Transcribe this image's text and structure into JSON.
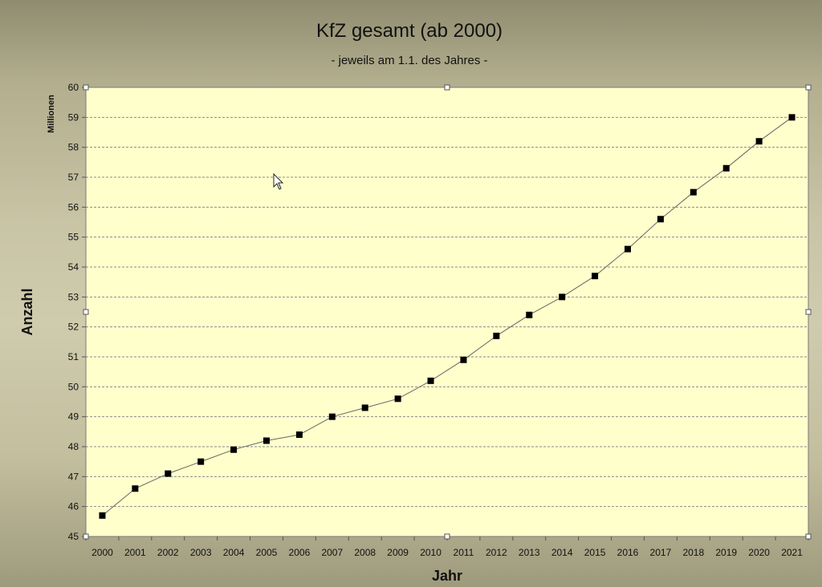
{
  "chart_data": {
    "type": "line",
    "title": "KfZ gesamt (ab 2000)",
    "subtitle": "- jeweils am 1.1. des Jahres -",
    "xlabel": "Jahr",
    "ylabel": "Anzahl",
    "yunit": "Millionen",
    "categories": [
      "2000",
      "2001",
      "2002",
      "2003",
      "2004",
      "2005",
      "2006",
      "2007",
      "2008",
      "2009",
      "2010",
      "2011",
      "2012",
      "2013",
      "2014",
      "2015",
      "2016",
      "2017",
      "2018",
      "2019",
      "2020",
      "2021"
    ],
    "series": [
      {
        "values": [
          45.7,
          46.6,
          47.1,
          47.5,
          47.9,
          48.2,
          48.4,
          49.0,
          49.3,
          49.6,
          50.2,
          50.9,
          51.7,
          52.4,
          53.0,
          53.7,
          54.6,
          55.6,
          56.5,
          57.3,
          58.2,
          59.0
        ]
      }
    ],
    "ylim": [
      45,
      60
    ],
    "yticks": [
      "45",
      "46",
      "47",
      "48",
      "49",
      "50",
      "51",
      "52",
      "53",
      "54",
      "55",
      "56",
      "57",
      "58",
      "59",
      "60"
    ],
    "grid": true,
    "legend": "none",
    "colors": {
      "plot_bg": "#ffffcc",
      "line": "#666666",
      "marker": "#000000",
      "grid": "#8a8a8a"
    }
  }
}
